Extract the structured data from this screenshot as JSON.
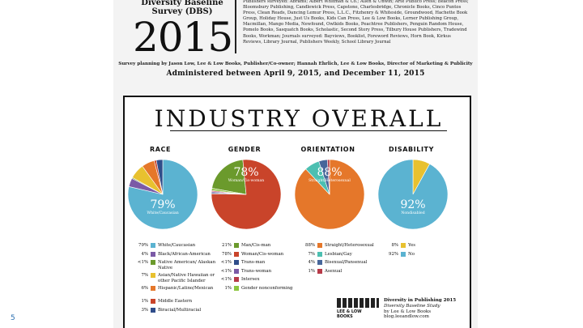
{
  "slide_number": "5",
  "header": {
    "study_title_lines": [
      "Diversity Baseline",
      "Survey (DBS)"
    ],
    "year": "2015",
    "publishers_text": "Publishers surveyed: Abrams; Albert Whitman & Co.; Allen & Unwin; Arte Publico Press; Beacon Press; Bloomsbury Publishing, Candlewick Press, Capstone, Charlesbridge, Chronicle Books, Cinco Puntos Press, Clean Reads, Dancing Lemur Press, L.L.C., Fitzhenry & Whiteside, Groundwood, Hachette Book Group, Holiday House, Just Us Books, Kids Can Press, Lee & Low Books, Lerner Publishing Group, Macmillan, Mango Media, Newfound, Owlkids Books, Peachtree Publishers, Penguin Random House, Pomelo Books, Sasquatch Books, Scholastic, Second Story Press, Tilbury House Publishers, Tradewind Books, Workman; Journals surveyed: Bayviews, Booklist, Foreword Reviews, Horn Book, Kirkus Reviews, Library Journal, Publishers Weekly, School Library Journal",
    "planning": "Survey planning by Jason Low, Lee & Low Books, Publisher/Co-owner; Hannah Ehrlich, Lee & Low Books, Director of Marketing & Publicity",
    "administered": "Administered between April 9, 2015, and December 11, 2015"
  },
  "colors": {
    "blue": "#5bb3d1",
    "orange": "#e5772a",
    "red": "#c9442a",
    "green": "#6b9a2c",
    "purple": "#7b5aa6",
    "yellow": "#e8c12f",
    "navy": "#2f4d8a",
    "crimson": "#b73a48",
    "lightgreen": "#8cc63f",
    "teal": "#4cbfb1",
    "steel": "#47669a"
  },
  "chart_data": {
    "type": "pie",
    "title": "INDUSTRY OVERALL",
    "charts": [
      {
        "name": "RACE",
        "center_label": {
          "value": "79%",
          "caption": "White/Caucasian"
        },
        "slices": [
          {
            "label": "White/Caucasian",
            "value": 79,
            "pct_text": "79%",
            "color": "#5bb3d1"
          },
          {
            "label": "Black/African-American",
            "value": 4,
            "pct_text": "4%",
            "color": "#7b5aa6"
          },
          {
            "label": "Native American/ Alaskan Native",
            "value": 0.5,
            "pct_text": "<1%",
            "color": "#6b9a2c"
          },
          {
            "label": "Asian/Native Hawaiian or other Pacific Islander",
            "value": 7,
            "pct_text": "7%",
            "color": "#e8c12f"
          },
          {
            "label": "Hispanic/Latino/Mexican",
            "value": 6,
            "pct_text": "6%",
            "color": "#e5772a"
          },
          {
            "label": "Middle Eastern",
            "value": 1,
            "pct_text": "1%",
            "color": "#c9442a"
          },
          {
            "label": "Biracial/Multiracial",
            "value": 3,
            "pct_text": "3%",
            "color": "#2f4d8a"
          }
        ]
      },
      {
        "name": "GENDER",
        "center_label": {
          "value": "78%",
          "caption": "Woman/Cis-woman"
        },
        "slices": [
          {
            "label": "Man/Cis-man",
            "value": 21,
            "pct_text": "21%",
            "color": "#6b9a2c"
          },
          {
            "label": "Woman/Cis-woman",
            "value": 78,
            "pct_text": "78%",
            "color": "#c9442a"
          },
          {
            "label": "Trans-man",
            "value": 0.5,
            "pct_text": "<1%",
            "color": "#2f4d8a"
          },
          {
            "label": "Trans-woman",
            "value": 0.5,
            "pct_text": "<1%",
            "color": "#7b5aa6"
          },
          {
            "label": "Intersex",
            "value": 0.5,
            "pct_text": "<1%",
            "color": "#b73a48"
          },
          {
            "label": "Gender nonconforming",
            "value": 1,
            "pct_text": "1%",
            "color": "#8cc63f"
          }
        ]
      },
      {
        "name": "ORIENTATION",
        "center_label": {
          "value": "88%",
          "caption": "Straight/Heterosexual"
        },
        "slices": [
          {
            "label": "Straight/Heterosexual",
            "value": 88,
            "pct_text": "88%",
            "color": "#e5772a"
          },
          {
            "label": "Lesbian/Gay",
            "value": 7,
            "pct_text": "7%",
            "color": "#4cbfb1"
          },
          {
            "label": "Bisexual/Pansexual",
            "value": 4,
            "pct_text": "4%",
            "color": "#47669a"
          },
          {
            "label": "Asexual",
            "value": 1,
            "pct_text": "1%",
            "color": "#b73a48"
          }
        ]
      },
      {
        "name": "DISABILITY",
        "center_label": {
          "value": "92%",
          "caption": "Nondisabled"
        },
        "slices": [
          {
            "label": "Yes",
            "value": 8,
            "pct_text": "8%",
            "color": "#e8c12f"
          },
          {
            "label": "No",
            "value": 92,
            "pct_text": "92%",
            "color": "#5bb3d1"
          }
        ]
      }
    ]
  },
  "footer": {
    "logo_text": "LEE & LOW BOOKS",
    "lines": [
      "Diversity in Publishing 2015",
      "Diversity Baseline Study",
      "by Lee & Low Books",
      "blog.leeandlow.com"
    ]
  }
}
